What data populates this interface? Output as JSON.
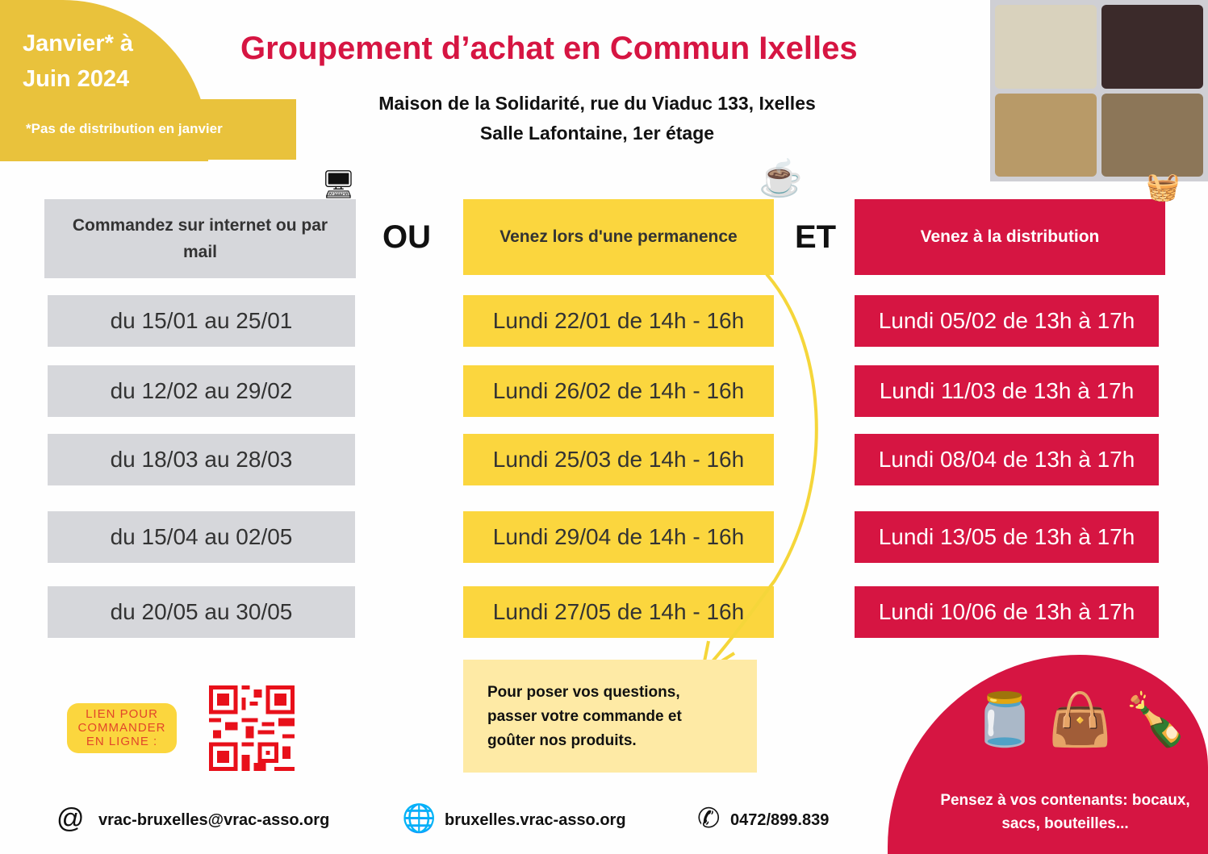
{
  "header": {
    "period_line1": "Janvier* à",
    "period_line2": "Juin 2024",
    "note": "*Pas de distribution en janvier",
    "title": "Groupement d’achat en Commun Ixelles",
    "address_line1": "Maison de la Solidarité, rue du Viaduc 133, Ixelles",
    "address_line2": "Salle Lafontaine, 1er étage"
  },
  "columns": {
    "order": {
      "header": "Commandez sur internet ou par mail",
      "rows": [
        "du 15/01 au 25/01",
        "du 12/02 au 29/02",
        "du 18/03 au 28/03",
        "du 15/04 au 02/05",
        "du 20/05 au 30/05"
      ]
    },
    "connector1": "OU",
    "permanence": {
      "header": "Venez lors d'une permanence",
      "rows": [
        "Lundi 22/01 de 14h - 16h",
        "Lundi 26/02 de 14h - 16h",
        "Lundi 25/03 de 14h - 16h",
        "Lundi 29/04 de 14h - 16h",
        "Lundi 27/05 de 14h - 16h"
      ]
    },
    "connector2": "ET",
    "distribution": {
      "header": "Venez à la distribution",
      "rows": [
        "Lundi 05/02 de 13h à 17h",
        "Lundi 11/03 de 13h à 17h",
        "Lundi 08/04 de 13h à 17h",
        "Lundi 13/05 de 13h à 17h",
        "Lundi 10/06 de 13h à 17h"
      ]
    }
  },
  "questions": "Pour poser vos questions, passer votre commande et goûter nos produits.",
  "lien": "LIEN POUR COMMANDER EN LIGNE :",
  "containers": "Pensez à vos contenants: bocaux, sacs, bouteilles...",
  "footer": {
    "email": "vrac-bruxelles@vrac-asso.org",
    "website": "bruxelles.vrac-asso.org",
    "phone": "0472/899.839"
  },
  "colors": {
    "yellow": "#fbd63e",
    "red": "#d61542",
    "gray": "#d6d7db",
    "gold": "#e9c23c"
  }
}
